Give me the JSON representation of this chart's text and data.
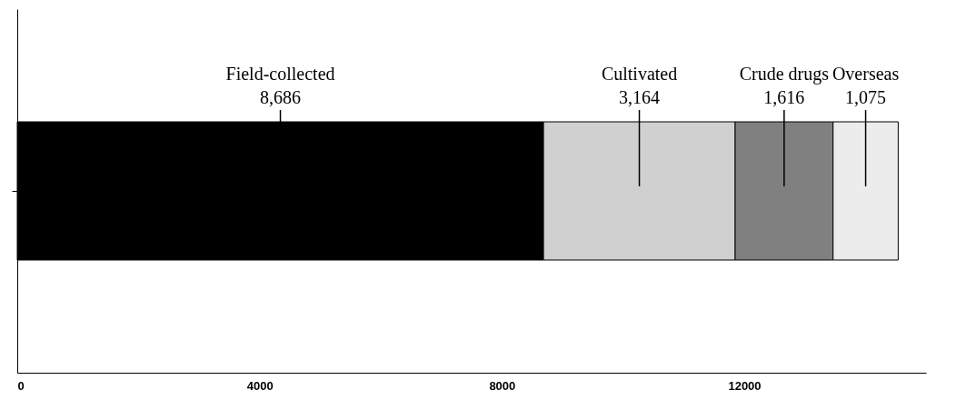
{
  "chart_data": {
    "type": "bar",
    "orientation": "horizontal",
    "stacked": true,
    "categories": [
      null
    ],
    "series": [
      {
        "name": "Field-collected",
        "color": "#000000",
        "values": [
          8686
        ]
      },
      {
        "name": "Cultivated",
        "color": "#d0d0d0",
        "values": [
          3164
        ]
      },
      {
        "name": "Crude drugs",
        "color": "#808080",
        "values": [
          1616
        ]
      },
      {
        "name": "Overseas",
        "color": "#ececec",
        "values": [
          1075
        ]
      }
    ],
    "xlim": [
      0,
      15000
    ],
    "xticks": [
      0,
      4000,
      8000,
      12000
    ],
    "value_labels": [
      "8,686",
      "3,164",
      "1,616",
      "1,075"
    ],
    "grid": false,
    "legend": false
  }
}
